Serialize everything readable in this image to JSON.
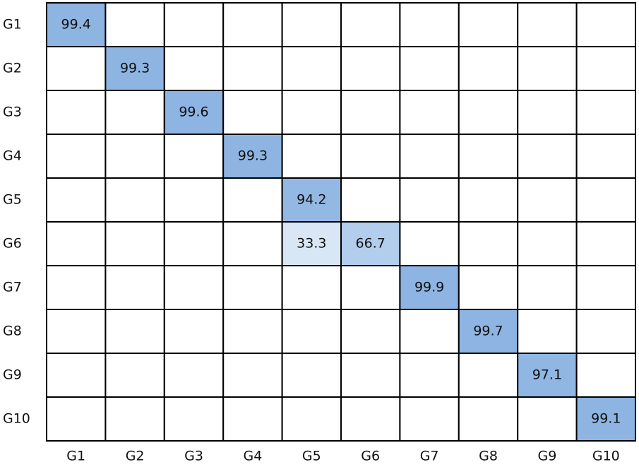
{
  "chart_data": {
    "type": "heatmap",
    "x_categories": [
      "G1",
      "G2",
      "G3",
      "G4",
      "G5",
      "G6",
      "G7",
      "G8",
      "G9",
      "G10"
    ],
    "y_categories": [
      "G1",
      "G2",
      "G3",
      "G4",
      "G5",
      "G6",
      "G7",
      "G8",
      "G9",
      "G10"
    ],
    "values": [
      [
        99.4,
        null,
        null,
        null,
        null,
        null,
        null,
        null,
        null,
        null
      ],
      [
        null,
        99.3,
        null,
        null,
        null,
        null,
        null,
        null,
        null,
        null
      ],
      [
        null,
        null,
        99.6,
        null,
        null,
        null,
        null,
        null,
        null,
        null
      ],
      [
        null,
        null,
        null,
        99.3,
        null,
        null,
        null,
        null,
        null,
        null
      ],
      [
        null,
        null,
        null,
        null,
        94.2,
        null,
        null,
        null,
        null,
        null
      ],
      [
        null,
        null,
        null,
        null,
        33.3,
        66.7,
        null,
        null,
        null,
        null
      ],
      [
        null,
        null,
        null,
        null,
        null,
        null,
        99.9,
        null,
        null,
        null
      ],
      [
        null,
        null,
        null,
        null,
        null,
        null,
        null,
        99.7,
        null,
        null
      ],
      [
        null,
        null,
        null,
        null,
        null,
        null,
        null,
        null,
        97.1,
        null
      ],
      [
        null,
        null,
        null,
        null,
        null,
        null,
        null,
        null,
        null,
        99.1
      ]
    ],
    "clim": [
      0,
      100
    ],
    "colors": [
      "#ffffff",
      "#8db4e2"
    ]
  }
}
